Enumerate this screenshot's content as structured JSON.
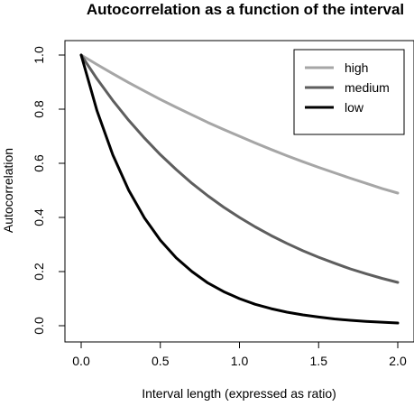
{
  "chart_data": {
    "type": "line",
    "title": "Autocorrelation as a function of the interval",
    "xlabel": "Interval length (expressed as ratio)",
    "ylabel": "Autocorrelation",
    "xlim": [
      0,
      2
    ],
    "ylim": [
      0,
      1
    ],
    "xticks": [
      "0.0",
      "0.5",
      "1.0",
      "1.5",
      "2.0"
    ],
    "yticks": [
      "0.0",
      "0.2",
      "0.4",
      "0.6",
      "0.8",
      "1.0"
    ],
    "grid": false,
    "legend_position": "top-right",
    "x": [
      0.0,
      0.1,
      0.2,
      0.3,
      0.4,
      0.5,
      0.6,
      0.7,
      0.8,
      0.9,
      1.0,
      1.1,
      1.2,
      1.3,
      1.4,
      1.5,
      1.6,
      1.7,
      1.8,
      1.9,
      2.0
    ],
    "series": [
      {
        "name": "high",
        "color": "#a6a6a6",
        "values": [
          1.0,
          0.965,
          0.931,
          0.898,
          0.867,
          0.836,
          0.807,
          0.779,
          0.751,
          0.725,
          0.7,
          0.675,
          0.651,
          0.628,
          0.606,
          0.585,
          0.565,
          0.545,
          0.526,
          0.507,
          0.49
        ]
      },
      {
        "name": "medium",
        "color": "#5e5e5e",
        "values": [
          1.0,
          0.912,
          0.832,
          0.759,
          0.693,
          0.632,
          0.577,
          0.526,
          0.48,
          0.438,
          0.4,
          0.365,
          0.333,
          0.304,
          0.277,
          0.253,
          0.231,
          0.21,
          0.192,
          0.175,
          0.16
        ]
      },
      {
        "name": "low",
        "color": "#000000",
        "values": [
          1.0,
          0.794,
          0.631,
          0.501,
          0.398,
          0.316,
          0.251,
          0.2,
          0.158,
          0.126,
          0.1,
          0.079,
          0.063,
          0.05,
          0.04,
          0.032,
          0.025,
          0.02,
          0.016,
          0.013,
          0.01
        ]
      }
    ]
  }
}
